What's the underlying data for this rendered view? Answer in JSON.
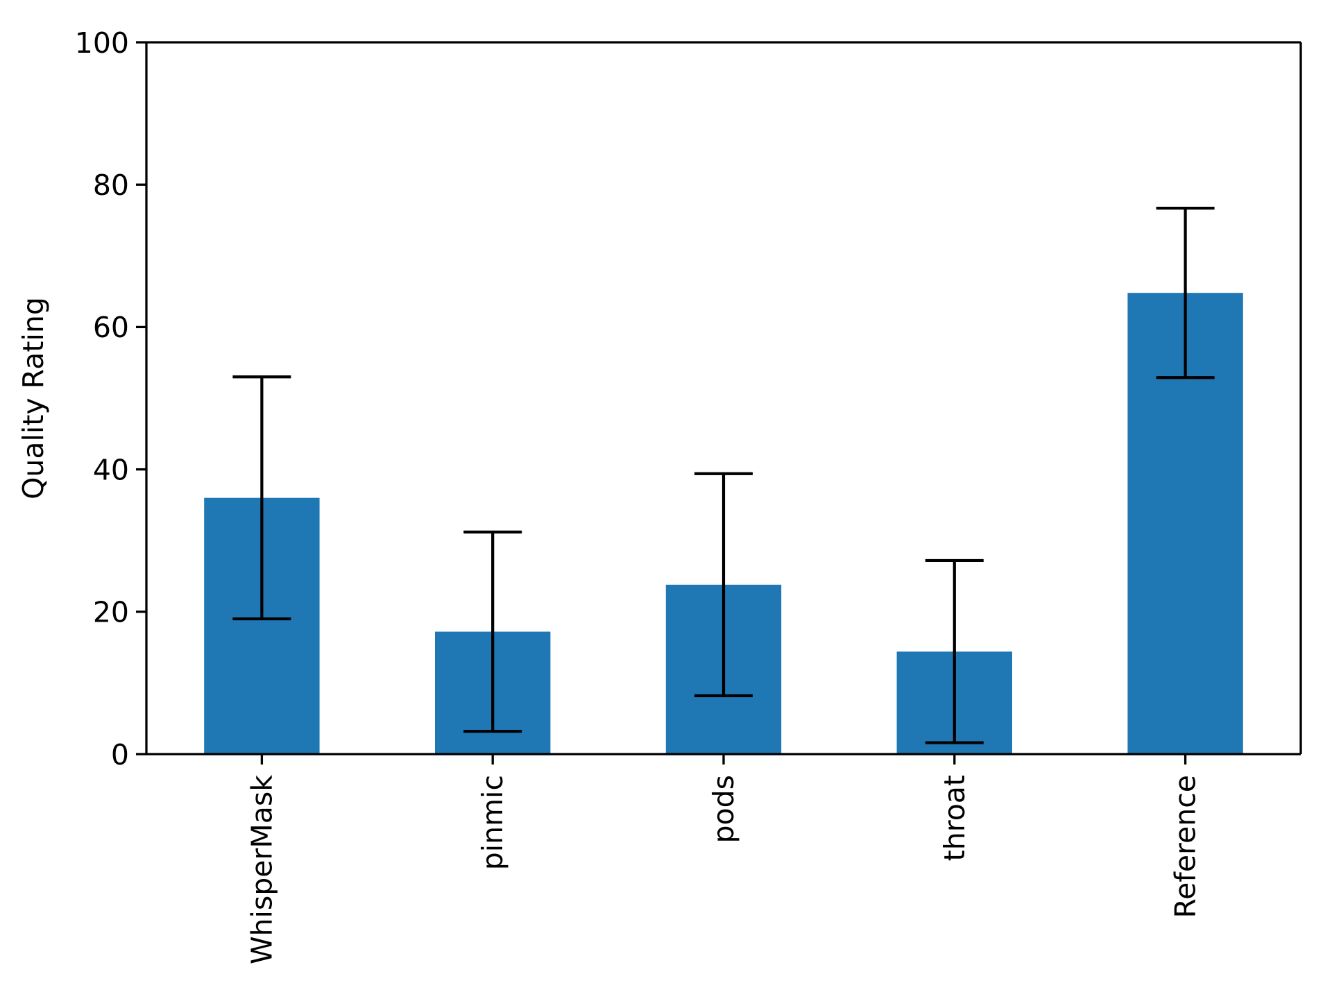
{
  "figure": {
    "background_color": "#ffffff"
  },
  "chart_data": {
    "type": "bar",
    "title": "",
    "xlabel": "",
    "ylabel": "Quality Rating",
    "categories": [
      "WhisperMask",
      "pinmic",
      "pods",
      "throat",
      "Reference"
    ],
    "values": [
      36.0,
      17.2,
      23.8,
      14.4,
      64.8
    ],
    "error_bars": [
      17.0,
      14.0,
      15.6,
      12.8,
      11.9
    ],
    "ylim": [
      0,
      100
    ],
    "yticks": [
      0,
      20,
      40,
      60,
      80,
      100
    ],
    "bar_color": "#1f77b4",
    "error_bar_color": "#000000",
    "axis_color": "#000000",
    "grid": false,
    "legend": null,
    "x_tick_rotation_deg": 90
  }
}
